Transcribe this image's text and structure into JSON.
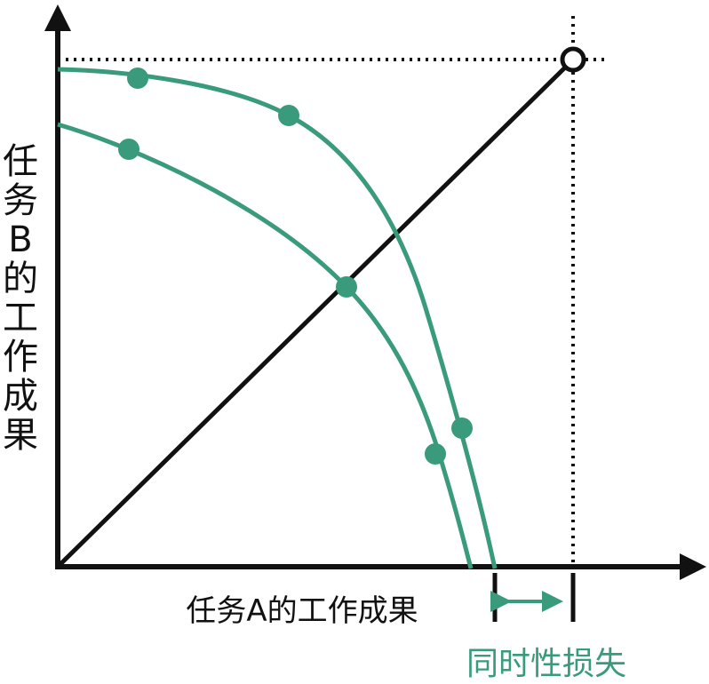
{
  "y_axis_label": "任务B的工作成果",
  "x_axis_label": "任务A的工作成果",
  "annotation": "同时性损失"
}
